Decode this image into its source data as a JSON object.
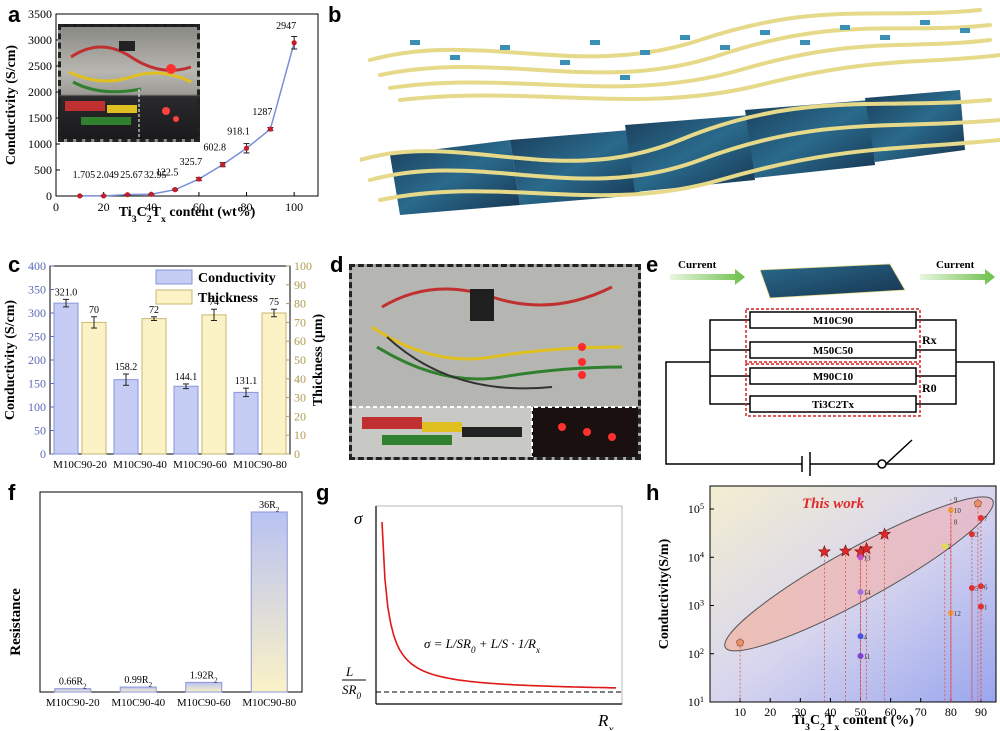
{
  "panels": {
    "a": {
      "label": "a"
    },
    "b": {
      "label": "b"
    },
    "c": {
      "label": "c"
    },
    "d": {
      "label": "d"
    },
    "e": {
      "label": "e",
      "current_left": "Current",
      "current_right": "Current",
      "bars": [
        "M10C90",
        "M50C50",
        "M90C10",
        "Ti3C2Tx"
      ],
      "rx": "Rx",
      "r0": "R0"
    },
    "f": {
      "label": "f"
    },
    "g": {
      "label": "g"
    },
    "h": {
      "label": "h"
    }
  },
  "chart_data": [
    {
      "id": "a",
      "type": "line",
      "x": [
        10,
        20,
        30,
        40,
        50,
        60,
        70,
        80,
        90,
        100
      ],
      "values": [
        1.705,
        2.049,
        25.67,
        32.95,
        122.5,
        325.7,
        602.8,
        918.1,
        1287,
        2947
      ],
      "value_labels": [
        "1.705",
        "2.049",
        "25.67",
        "32.95",
        "122.5",
        "325.7",
        "602.8",
        "918.1",
        "1287",
        "2947"
      ],
      "errors": [
        3,
        3,
        8,
        8,
        15,
        30,
        40,
        90,
        30,
        120
      ],
      "xlabel": "Ti3C2Tx content (wt%)",
      "ylabel": "Conductivity (S/cm)",
      "xlim": [
        0,
        110
      ],
      "ylim": [
        0,
        3500
      ],
      "xticks": [
        0,
        20,
        40,
        60,
        80,
        100
      ],
      "yticks": [
        0,
        500,
        1000,
        1500,
        2000,
        2500,
        3000,
        3500
      ],
      "color_line": "#7b8fd8",
      "color_marker": "#c0202a"
    },
    {
      "id": "c",
      "type": "bar",
      "categories": [
        "M10C90-20",
        "M10C90-40",
        "M10C90-60",
        "M10C90-80"
      ],
      "series": [
        {
          "name": "Conductivity",
          "values": [
            321.0,
            158.2,
            144.1,
            131.1
          ],
          "labels": [
            "321.0",
            "158.2",
            "144.1",
            "131.1"
          ],
          "errors": [
            8,
            12,
            5,
            9
          ],
          "color": "#c6cdf5"
        },
        {
          "name": "Thickness",
          "values": [
            70,
            72,
            74,
            75
          ],
          "labels": [
            "70",
            "72",
            "74",
            "75"
          ],
          "errors": [
            3,
            1,
            3,
            2
          ],
          "color": "#fbf2c6"
        }
      ],
      "ylabel": "Conductivity (S/cm)",
      "ylabel_right": "Thickness (μm)",
      "ylim": [
        0,
        400
      ],
      "ylim_right": [
        0,
        100
      ],
      "yticks": [
        0,
        50,
        100,
        150,
        200,
        250,
        300,
        350,
        400
      ],
      "yticks_right": [
        0,
        10,
        20,
        30,
        40,
        50,
        60,
        70,
        80,
        90,
        100
      ],
      "legend": "top-center"
    },
    {
      "id": "f",
      "type": "bar",
      "categories": [
        "M10C90-20",
        "M10C90-40",
        "M10C90-60",
        "M10C90-80"
      ],
      "values": [
        0.66,
        0.99,
        1.92,
        36
      ],
      "labels": [
        "0.66R2",
        "0.99R2",
        "1.92R2",
        "36R2"
      ],
      "ylabel": "Resistance",
      "ylim": [
        0,
        40
      ]
    },
    {
      "id": "g",
      "type": "line",
      "ylabel": "σ",
      "xlabel": "Rx",
      "asymptote_label": "L / SR0",
      "equation": "σ = L/SR0 + L/S · 1/Rx"
    },
    {
      "id": "h",
      "type": "scatter",
      "title": "This work",
      "xlabel": "Ti3C2Tx content (%)",
      "ylabel": "Conductivity(S/m)",
      "xlim": [
        0,
        95
      ],
      "yscale": "log",
      "ylim": [
        10,
        300000
      ],
      "xticks": [
        10,
        20,
        30,
        40,
        50,
        60,
        70,
        80,
        90
      ],
      "yticks_labels": [
        "10^1",
        "10^2",
        "10^3",
        "10^4",
        "10^5"
      ],
      "points": [
        {
          "x": 10,
          "y": 170,
          "label": "",
          "marker": "pentagon",
          "color": "#e8906a"
        },
        {
          "x": 38,
          "y": 13000,
          "label": "",
          "marker": "star",
          "color": "#e02828"
        },
        {
          "x": 45,
          "y": 13500,
          "label": "",
          "marker": "star",
          "color": "#e02828"
        },
        {
          "x": 50,
          "y": 13000,
          "label": "",
          "marker": "star",
          "color": "#e02828"
        },
        {
          "x": 52,
          "y": 15000,
          "label": "",
          "marker": "star",
          "color": "#e02828"
        },
        {
          "x": 58,
          "y": 30000,
          "label": "",
          "marker": "star",
          "color": "#e02828"
        },
        {
          "x": 50,
          "y": 10000,
          "label": "13",
          "marker": "circle",
          "color": "#c050c0"
        },
        {
          "x": 50,
          "y": 1900,
          "label": "14",
          "marker": "circle",
          "color": "#a070e0"
        },
        {
          "x": 50,
          "y": 230,
          "label": "4",
          "marker": "circle",
          "color": "#5050e0"
        },
        {
          "x": 50,
          "y": 90,
          "label": "11",
          "marker": "circle",
          "color": "#8040d0"
        },
        {
          "x": 78,
          "y": 17000,
          "label": "2",
          "marker": "circle",
          "color": "#e0e040"
        },
        {
          "x": 80,
          "y": 95000,
          "label": "10",
          "marker": "circle",
          "color": "#f0a040"
        },
        {
          "x": 80,
          "y": 700,
          "label": "12",
          "marker": "circle",
          "color": "#f0a040"
        },
        {
          "x": 80,
          "y": 160000,
          "label": "9",
          "marker": "none",
          "color": "#333"
        },
        {
          "x": 80,
          "y": 55000,
          "label": "8",
          "marker": "none",
          "color": "#333"
        },
        {
          "x": 87,
          "y": 30000,
          "label": "3",
          "marker": "circle",
          "color": "#e03030"
        },
        {
          "x": 87,
          "y": 2300,
          "label": "5",
          "marker": "circle",
          "color": "#e03030"
        },
        {
          "x": 89,
          "y": 130000,
          "label": "",
          "marker": "pentagon",
          "color": "#e8906a"
        },
        {
          "x": 90,
          "y": 65000,
          "label": "7",
          "marker": "circle",
          "color": "#e03030"
        },
        {
          "x": 90,
          "y": 2500,
          "label": "6",
          "marker": "circle",
          "color": "#e03030"
        },
        {
          "x": 90,
          "y": 950,
          "label": "1",
          "marker": "circle",
          "color": "#e03030"
        }
      ]
    }
  ]
}
